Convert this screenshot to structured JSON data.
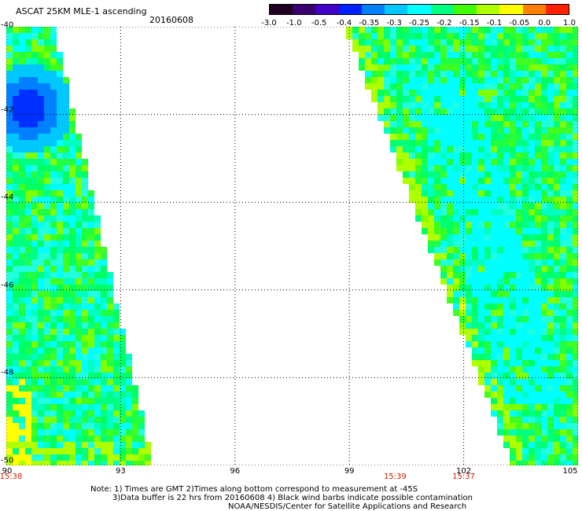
{
  "header": {
    "title": "ASCAT 25KM MLE-1 ascending",
    "date": "20160608"
  },
  "colorbar": {
    "labels": [
      "-3.0",
      "-1.0",
      "-0.5",
      "-0.4",
      "-0.35",
      "-0.3",
      "-0.25",
      "-0.2",
      "-0.15",
      "-0.1",
      "-0.05",
      "0.0",
      "1.0"
    ],
    "colors": [
      "#200020",
      "#3a0070",
      "#4000c8",
      "#0020ff",
      "#0080ff",
      "#00c8ff",
      "#00ffff",
      "#00ff80",
      "#40ff00",
      "#b0ff00",
      "#ffff00",
      "#ff8000",
      "#ff2000"
    ]
  },
  "map": {
    "lon_range": [
      90,
      105
    ],
    "lat_range": [
      -50,
      -40
    ],
    "lon_ticks": [
      "90",
      "93",
      "96",
      "99",
      "102",
      "105"
    ],
    "lat_ticks": [
      "-40",
      "-42",
      "-44",
      "-46",
      "-48",
      "-50"
    ],
    "time_labels": [
      {
        "text": "15:38",
        "lon": 90
      },
      {
        "text": "15:39",
        "lon": 100.2
      },
      {
        "text": "15:37",
        "lon": 102
      }
    ]
  },
  "notes": {
    "line1": "Note: 1) Times are GMT 2)Times along bottom correspond to measurement at -45S",
    "line2": "3)Data buffer is 22 hrs from 20160608 4) Black wind barbs indicate possible contamination",
    "line3": "NOAA/NESDIS/Center for Satellite Applications and Research"
  }
}
